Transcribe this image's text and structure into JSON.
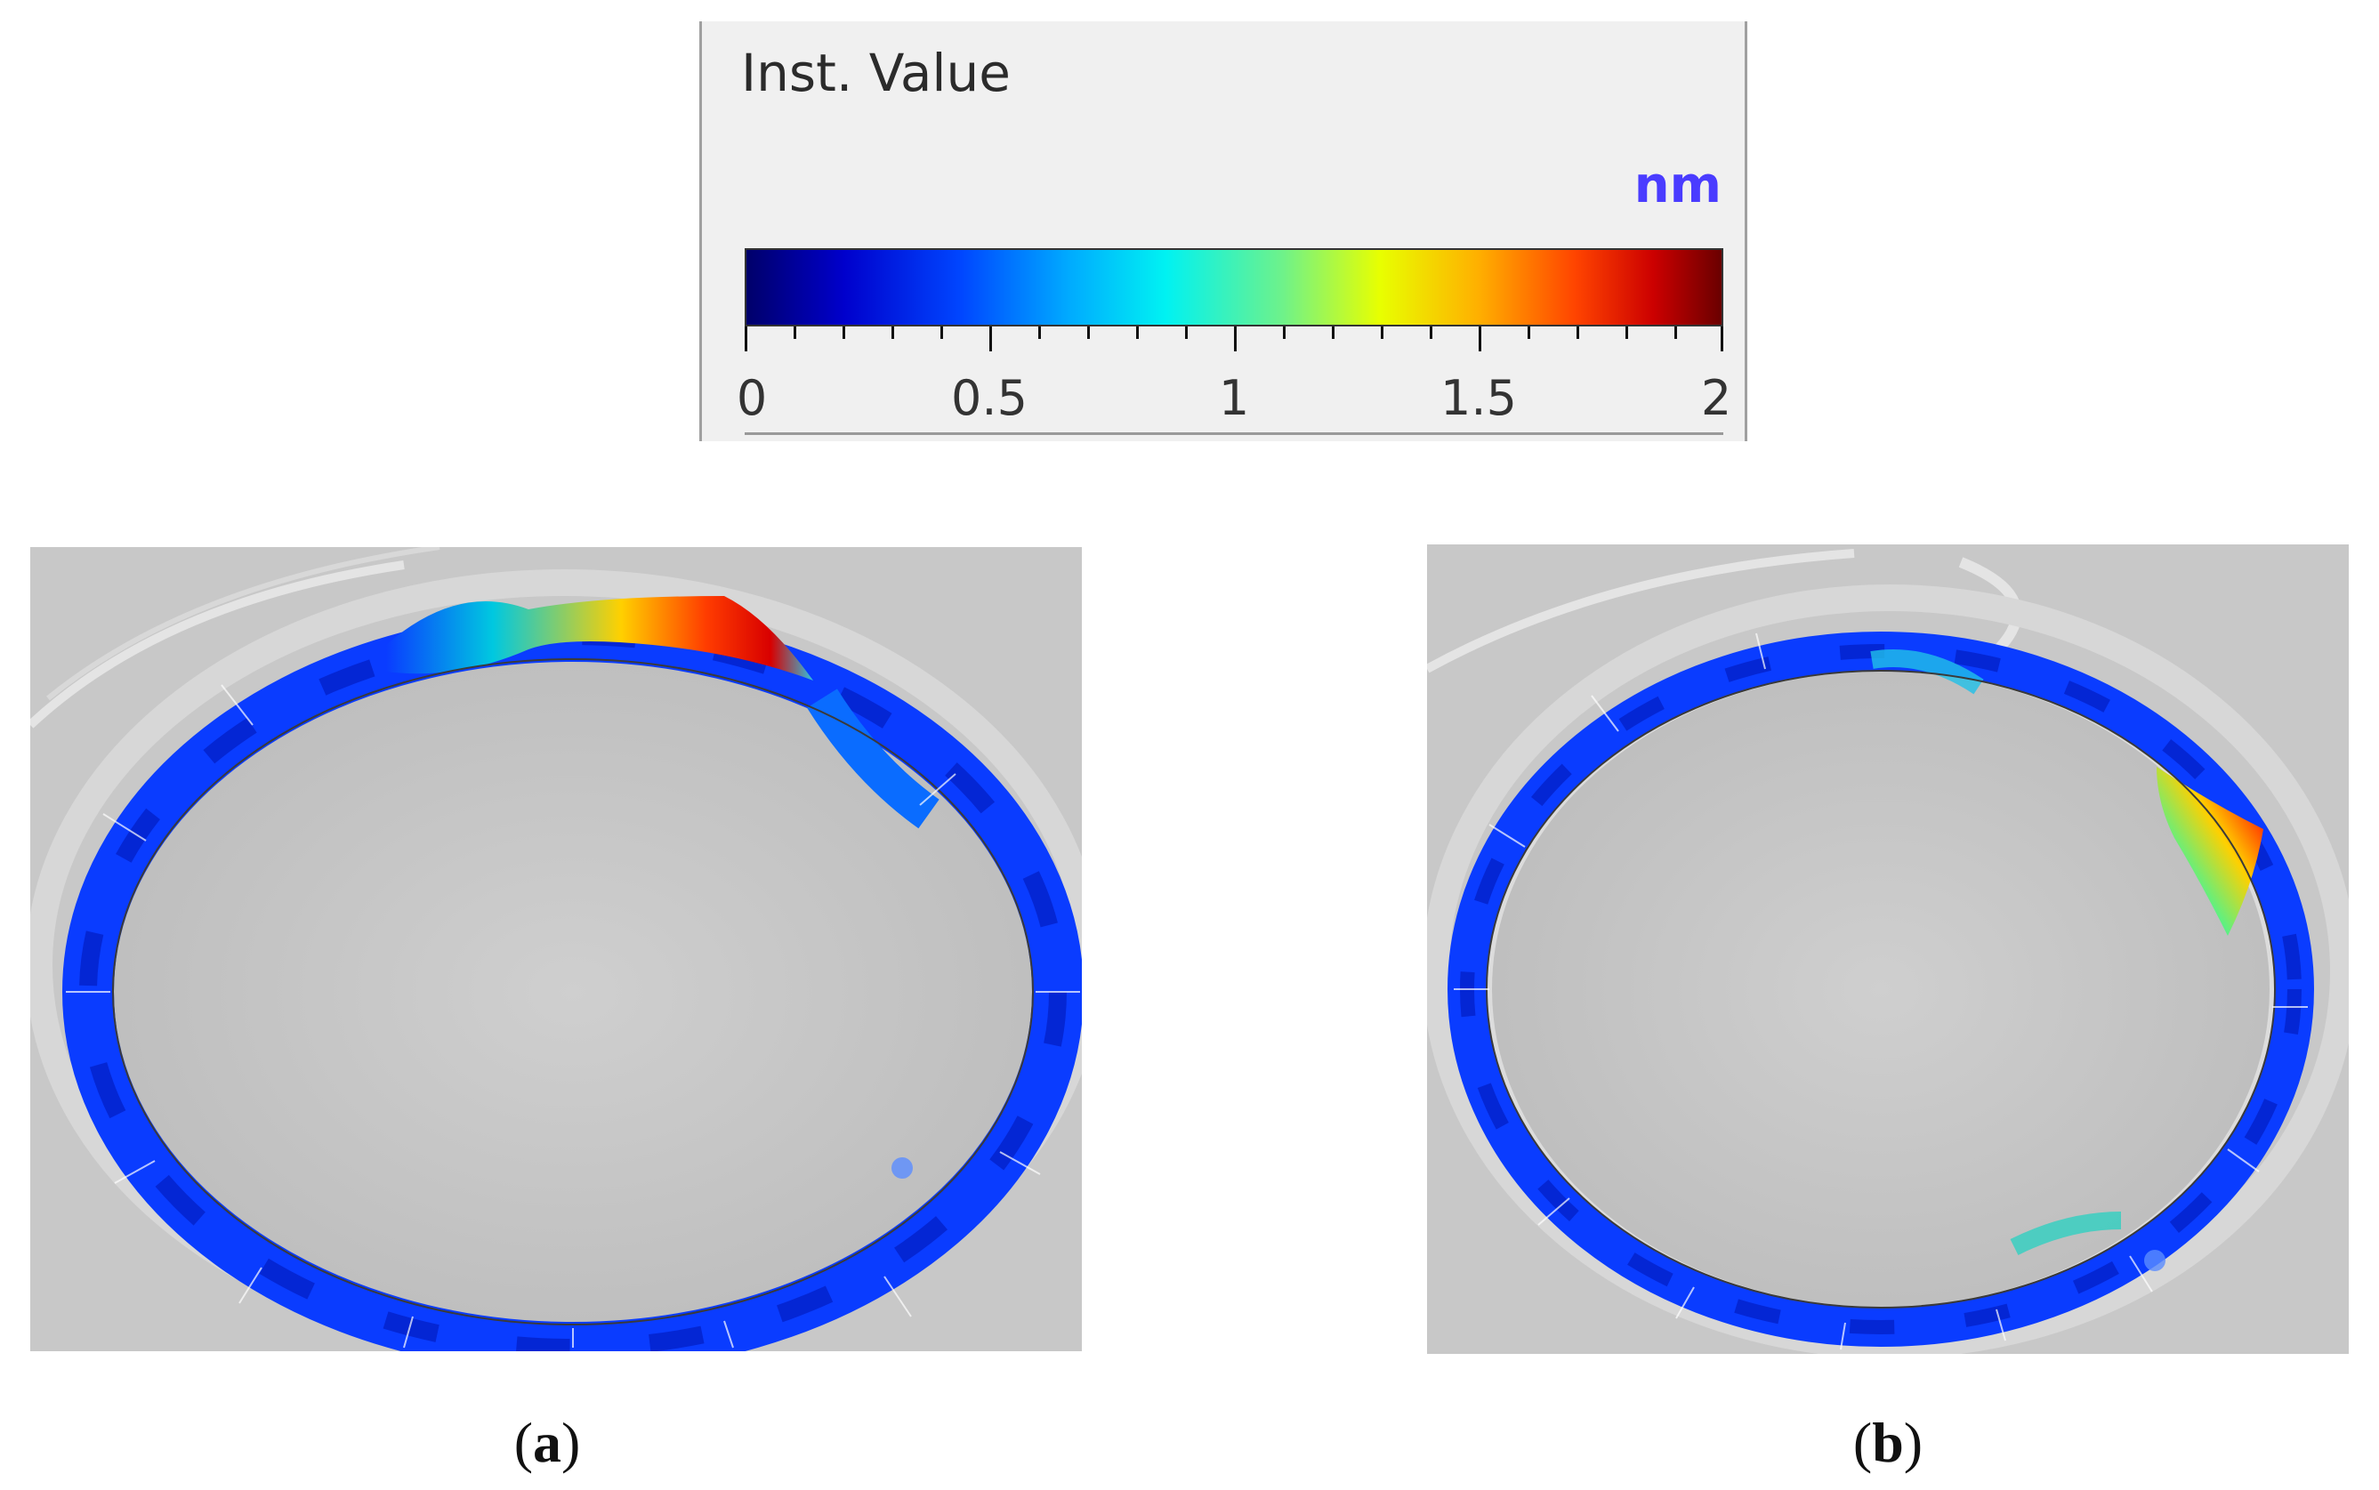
{
  "legend": {
    "title": "Inst. Value",
    "unit": "nm",
    "ticks": [
      "0",
      "0.5",
      "1",
      "1.5",
      "2"
    ],
    "range": [
      0,
      2
    ],
    "colormap": [
      "#00006a",
      "#0000cc",
      "#0046ff",
      "#00aaff",
      "#00f2f2",
      "#6ef28a",
      "#e8ff00",
      "#ffb000",
      "#ff4400",
      "#cc0000",
      "#6a0000"
    ]
  },
  "captions": {
    "a": {
      "open": "(",
      "letter": "a",
      "close": ")"
    },
    "b": {
      "open": "(",
      "letter": "b",
      "close": ")"
    }
  },
  "colors": {
    "background_gray": "#c8c8c8",
    "ring_blue": "#0a3cff",
    "ring_dark_blue": "#0018b8"
  }
}
